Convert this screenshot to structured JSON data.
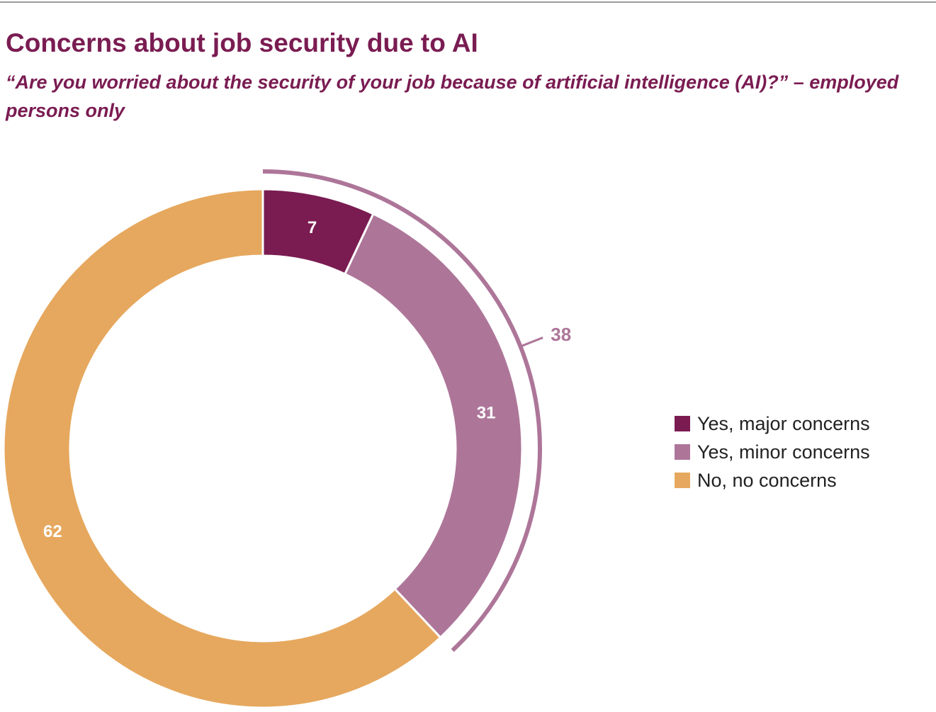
{
  "header": {
    "title": "Concerns about job security due to AI",
    "subtitle": "“Are you worried about the security of your job because of artificial intelligence (AI)?” – employed persons only"
  },
  "chart_data": {
    "type": "pie",
    "variant": "donut",
    "title": "Concerns about job security due to AI",
    "subtitle": "“Are you worried about the security of your job because of artificial intelligence (AI)?” – employed persons only",
    "start_angle": "12 o'clock, clockwise",
    "legend_position": "right",
    "slices": [
      {
        "name": "Yes, major concerns",
        "value": 7,
        "label": "7",
        "color": "#7a1c52"
      },
      {
        "name": "Yes, minor concerns",
        "value": 31,
        "label": "31",
        "color": "#ad7699"
      },
      {
        "name": "No, no concerns",
        "value": 62,
        "label": "62",
        "color": "#e6a85e"
      }
    ],
    "bracket": {
      "covers": [
        "Yes, major concerns",
        "Yes, minor concerns"
      ],
      "value": 38,
      "label": "38",
      "color": "#ad7699"
    }
  }
}
